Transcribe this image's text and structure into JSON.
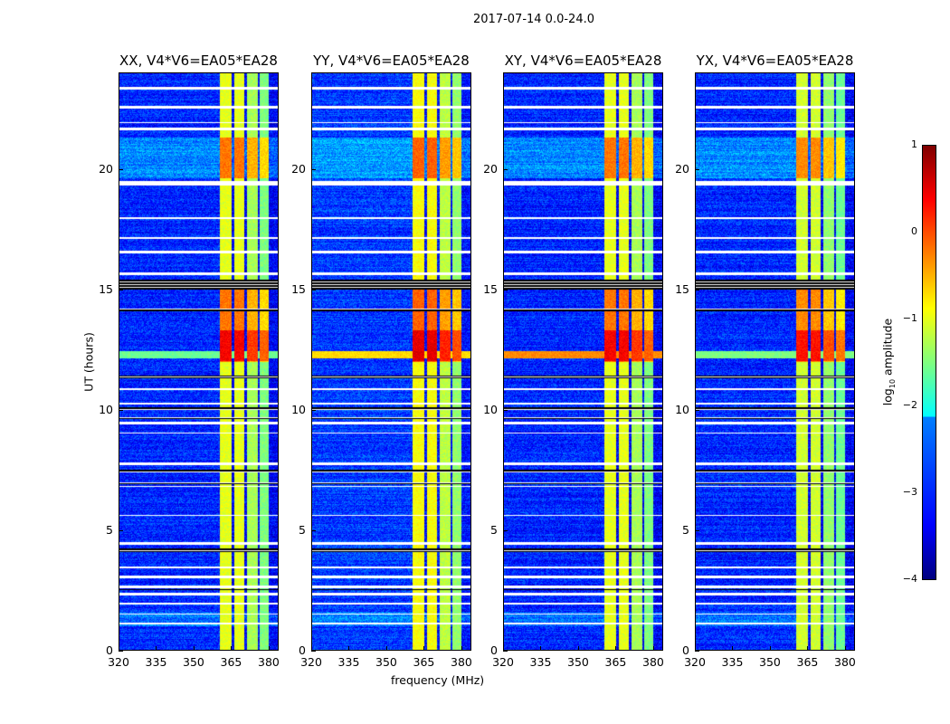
{
  "chart_data": {
    "type": "heatmap",
    "title": "2017-07-14 0.0-24.0",
    "xlabel": "frequency (MHz)",
    "ylabel": "UT (hours)",
    "xlim": [
      320,
      384
    ],
    "ylim": [
      0,
      24
    ],
    "xticks": [
      "320",
      "335",
      "350",
      "365",
      "380"
    ],
    "xtick_values": [
      320,
      335,
      350,
      365,
      380
    ],
    "yticks": [
      "0",
      "5",
      "10",
      "15",
      "20"
    ],
    "ytick_values": [
      0,
      5,
      10,
      15,
      20
    ],
    "colormap": "jet",
    "colorbar": {
      "label": "log10 amplitude",
      "label_main": "log",
      "label_sub": "10",
      "label_tail": " amplitude",
      "range": [
        -4,
        1
      ],
      "ticks": [
        "1",
        "0",
        "−1",
        "−2",
        "−3",
        "−4"
      ],
      "tick_values": [
        1,
        0,
        -1,
        -2,
        -3,
        -4
      ]
    },
    "panels": [
      {
        "title": "XX, V4*V6=EA05*EA28",
        "background": -3.2,
        "band_level": -1.0,
        "rfi_row_level": -1.6
      },
      {
        "title": "YY, V4*V6=EA05*EA28",
        "background": -3.1,
        "band_level": -0.9,
        "rfi_row_level": -0.7
      },
      {
        "title": "XY, V4*V6=EA05*EA28",
        "background": -3.2,
        "band_level": -1.0,
        "rfi_row_level": -0.3
      },
      {
        "title": "YX, V4*V6=EA05*EA28",
        "background": -3.2,
        "band_level": -1.1,
        "rfi_row_level": -1.5
      }
    ],
    "subbands_mhz": [
      [
        360.5,
        365.3
      ],
      [
        366.2,
        370.4
      ],
      [
        371.3,
        375.6
      ],
      [
        376.4,
        380.0
      ]
    ],
    "strong_intervals_hours": [
      [
        12.0,
        15.0
      ],
      [
        19.6,
        21.3
      ]
    ],
    "flagged_hours": [
      [
        23.3,
        23.4
      ],
      [
        22.5,
        22.6
      ],
      [
        21.9,
        21.95
      ],
      [
        21.6,
        21.7
      ],
      [
        19.3,
        19.5
      ],
      [
        17.9,
        18.0
      ],
      [
        17.1,
        17.15
      ],
      [
        16.5,
        16.6
      ],
      [
        15.6,
        15.7
      ],
      [
        10.8,
        10.9
      ],
      [
        10.2,
        10.3
      ],
      [
        9.4,
        9.5
      ],
      [
        9.0,
        9.05
      ],
      [
        7.7,
        7.8
      ],
      [
        6.8,
        6.85
      ],
      [
        5.6,
        5.65
      ],
      [
        4.4,
        4.5
      ],
      [
        3.4,
        3.5
      ],
      [
        3.0,
        3.1
      ],
      [
        2.6,
        2.7
      ],
      [
        2.3,
        2.4
      ],
      [
        1.9,
        2.0
      ],
      [
        1.5,
        1.55
      ],
      [
        1.1,
        1.15
      ]
    ],
    "dropout_hours": [
      [
        15.0,
        15.4
      ],
      [
        14.1,
        14.2
      ],
      [
        11.3,
        11.4
      ],
      [
        10.0,
        10.1
      ],
      [
        9.6,
        9.7
      ],
      [
        7.4,
        7.5
      ],
      [
        6.9,
        7.0
      ],
      [
        4.1,
        4.25
      ],
      [
        2.5,
        2.55
      ]
    ]
  }
}
